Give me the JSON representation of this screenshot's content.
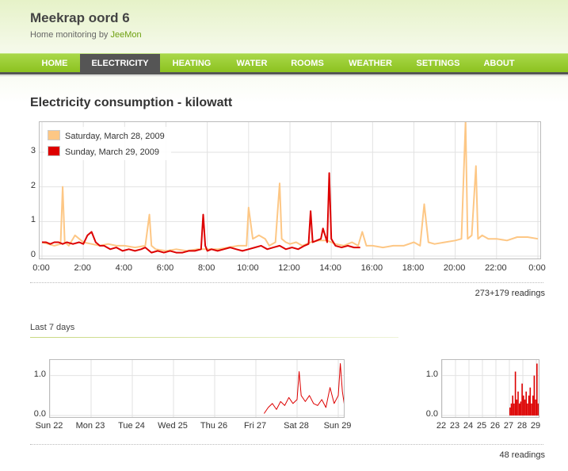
{
  "site": {
    "title": "Meekrap oord 6",
    "subtitle_prefix": "Home monitoring by ",
    "subtitle_link": "JeeMon"
  },
  "nav": {
    "items": [
      {
        "label": "Home",
        "active": false
      },
      {
        "label": "Electricity",
        "active": true
      },
      {
        "label": "Heating",
        "active": false
      },
      {
        "label": "Water",
        "active": false
      },
      {
        "label": "Rooms",
        "active": false
      },
      {
        "label": "Weather",
        "active": false
      },
      {
        "label": "Settings",
        "active": false
      },
      {
        "label": "About",
        "active": false
      }
    ]
  },
  "page": {
    "title": "Electricity consumption - kilowatt"
  },
  "colors": {
    "accent": "#8cc21f",
    "series_saturday": "#fdc785",
    "series_sunday": "#dd0000"
  },
  "chart_data": [
    {
      "type": "line",
      "title": "",
      "xlabel": "",
      "ylabel": "",
      "ylim": [
        0,
        3.8
      ],
      "xlim": [
        0,
        24
      ],
      "yticks": [
        "0",
        "1",
        "2",
        "3"
      ],
      "xticks": [
        "0:00",
        "2:00",
        "4:00",
        "6:00",
        "8:00",
        "10:00",
        "12:00",
        "14:00",
        "16:00",
        "18:00",
        "20:00",
        "22:00",
        "0:00"
      ],
      "grid": true,
      "legend": "top-left",
      "series": [
        {
          "name": "Saturday, March 28, 2009",
          "color": "#fdc785",
          "x": [
            0,
            0.3,
            0.6,
            0.9,
            1.0,
            1.1,
            1.3,
            1.6,
            2.0,
            2.4,
            2.8,
            3.2,
            3.6,
            4.0,
            4.5,
            5.0,
            5.2,
            5.3,
            5.5,
            6.0,
            6.5,
            7.0,
            7.5,
            8.0,
            8.5,
            9.0,
            9.5,
            9.9,
            10.0,
            10.2,
            10.5,
            10.8,
            11.0,
            11.3,
            11.5,
            11.6,
            11.8,
            12.0,
            12.3,
            12.6,
            13.0,
            13.4,
            13.8,
            14.2,
            14.6,
            15.0,
            15.3,
            15.5,
            15.7,
            16.0,
            16.5,
            17.0,
            17.5,
            18.0,
            18.3,
            18.5,
            18.7,
            19.0,
            19.5,
            20.0,
            20.3,
            20.5,
            20.6,
            20.8,
            21.0,
            21.1,
            21.3,
            21.6,
            22.0,
            22.5,
            23.0,
            23.5,
            24.0
          ],
          "values": [
            0.4,
            0.35,
            0.3,
            0.35,
            2.0,
            0.4,
            0.3,
            0.6,
            0.4,
            0.35,
            0.3,
            0.35,
            0.3,
            0.3,
            0.25,
            0.3,
            1.2,
            0.3,
            0.2,
            0.15,
            0.2,
            0.15,
            0.2,
            0.2,
            0.2,
            0.25,
            0.3,
            0.3,
            1.4,
            0.5,
            0.6,
            0.5,
            0.3,
            0.4,
            2.1,
            0.5,
            0.4,
            0.35,
            0.4,
            0.3,
            0.4,
            0.45,
            0.45,
            0.35,
            0.3,
            0.4,
            0.3,
            0.7,
            0.3,
            0.3,
            0.25,
            0.3,
            0.3,
            0.4,
            0.3,
            1.5,
            0.4,
            0.35,
            0.4,
            0.45,
            0.5,
            3.9,
            0.5,
            0.6,
            2.6,
            0.5,
            0.6,
            0.5,
            0.5,
            0.45,
            0.55,
            0.55,
            0.5
          ]
        },
        {
          "name": "Sunday, March 29, 2009",
          "color": "#dd0000",
          "x": [
            0,
            0.2,
            0.4,
            0.6,
            0.8,
            1.0,
            1.2,
            1.5,
            1.8,
            2.0,
            2.2,
            2.4,
            2.6,
            2.8,
            3.0,
            3.3,
            3.6,
            3.9,
            4.2,
            4.5,
            4.8,
            5.0,
            5.3,
            5.6,
            5.9,
            6.2,
            6.5,
            6.8,
            7.1,
            7.4,
            7.7,
            7.8,
            7.9,
            8.0,
            8.2,
            8.5,
            8.8,
            9.1,
            9.4,
            9.7,
            10.0,
            10.3,
            10.6,
            10.9,
            11.2,
            11.5,
            11.8,
            12.1,
            12.4,
            12.7,
            12.9,
            13.0,
            13.1,
            13.3,
            13.5,
            13.6,
            13.8,
            13.9,
            14.0,
            14.2,
            14.5,
            14.8,
            15.1,
            15.4
          ],
          "values": [
            0.4,
            0.4,
            0.35,
            0.4,
            0.4,
            0.35,
            0.4,
            0.35,
            0.4,
            0.35,
            0.6,
            0.7,
            0.4,
            0.3,
            0.3,
            0.2,
            0.25,
            0.15,
            0.2,
            0.15,
            0.2,
            0.25,
            0.1,
            0.15,
            0.1,
            0.15,
            0.1,
            0.1,
            0.15,
            0.15,
            0.2,
            1.2,
            0.3,
            0.15,
            0.2,
            0.15,
            0.2,
            0.25,
            0.2,
            0.15,
            0.2,
            0.25,
            0.3,
            0.2,
            0.25,
            0.3,
            0.2,
            0.25,
            0.2,
            0.3,
            0.35,
            1.3,
            0.4,
            0.45,
            0.5,
            0.8,
            0.4,
            2.4,
            0.5,
            0.3,
            0.25,
            0.3,
            0.25,
            0.25
          ]
        }
      ]
    },
    {
      "type": "line",
      "title": "",
      "xlabel": "",
      "ylabel": "",
      "ylim": [
        0,
        1.35
      ],
      "xlim": [
        0,
        7.2
      ],
      "yticks": [
        "0.0",
        "1.0"
      ],
      "xticks": [
        "Sun 22",
        "Mon 23",
        "Tue 24",
        "Wed 25",
        "Thu 26",
        "Fri 27",
        "Sat 28",
        "Sun 29"
      ],
      "grid": true,
      "color": "#dd0000",
      "x": [
        5.2,
        5.3,
        5.4,
        5.5,
        5.6,
        5.7,
        5.8,
        5.9,
        6.0,
        6.05,
        6.1,
        6.2,
        6.3,
        6.4,
        6.5,
        6.6,
        6.7,
        6.8,
        6.9,
        7.0,
        7.05,
        7.1,
        7.15,
        7.2
      ],
      "values": [
        0.05,
        0.2,
        0.3,
        0.15,
        0.35,
        0.25,
        0.45,
        0.3,
        0.4,
        1.1,
        0.5,
        0.35,
        0.5,
        0.3,
        0.25,
        0.4,
        0.2,
        0.7,
        0.3,
        0.5,
        1.3,
        0.6,
        0.25,
        0.5
      ]
    },
    {
      "type": "bar",
      "title": "",
      "xlabel": "",
      "ylabel": "",
      "ylim": [
        0,
        1.35
      ],
      "yticks": [
        "0.0",
        "1.0"
      ],
      "xticks": [
        "22",
        "23",
        "24",
        "25",
        "26",
        "27",
        "28",
        "29"
      ],
      "grid": true,
      "color": "#dd0000",
      "x": [
        5.0,
        5.1,
        5.2,
        5.3,
        5.4,
        5.5,
        5.6,
        5.7,
        5.8,
        5.9,
        6.0,
        6.1,
        6.2,
        6.3,
        6.4,
        6.5,
        6.6,
        6.7,
        6.8,
        6.9,
        7.0,
        7.1
      ],
      "values": [
        0.2,
        0.3,
        0.5,
        0.3,
        1.1,
        0.4,
        0.6,
        0.3,
        0.35,
        0.8,
        0.5,
        0.4,
        0.6,
        0.3,
        0.5,
        0.7,
        0.3,
        0.5,
        1.0,
        0.4,
        1.3,
        0.3
      ]
    }
  ],
  "readings": {
    "main": "273+179 readings",
    "week": "48 readings"
  },
  "section": {
    "last7": "Last 7 days"
  }
}
